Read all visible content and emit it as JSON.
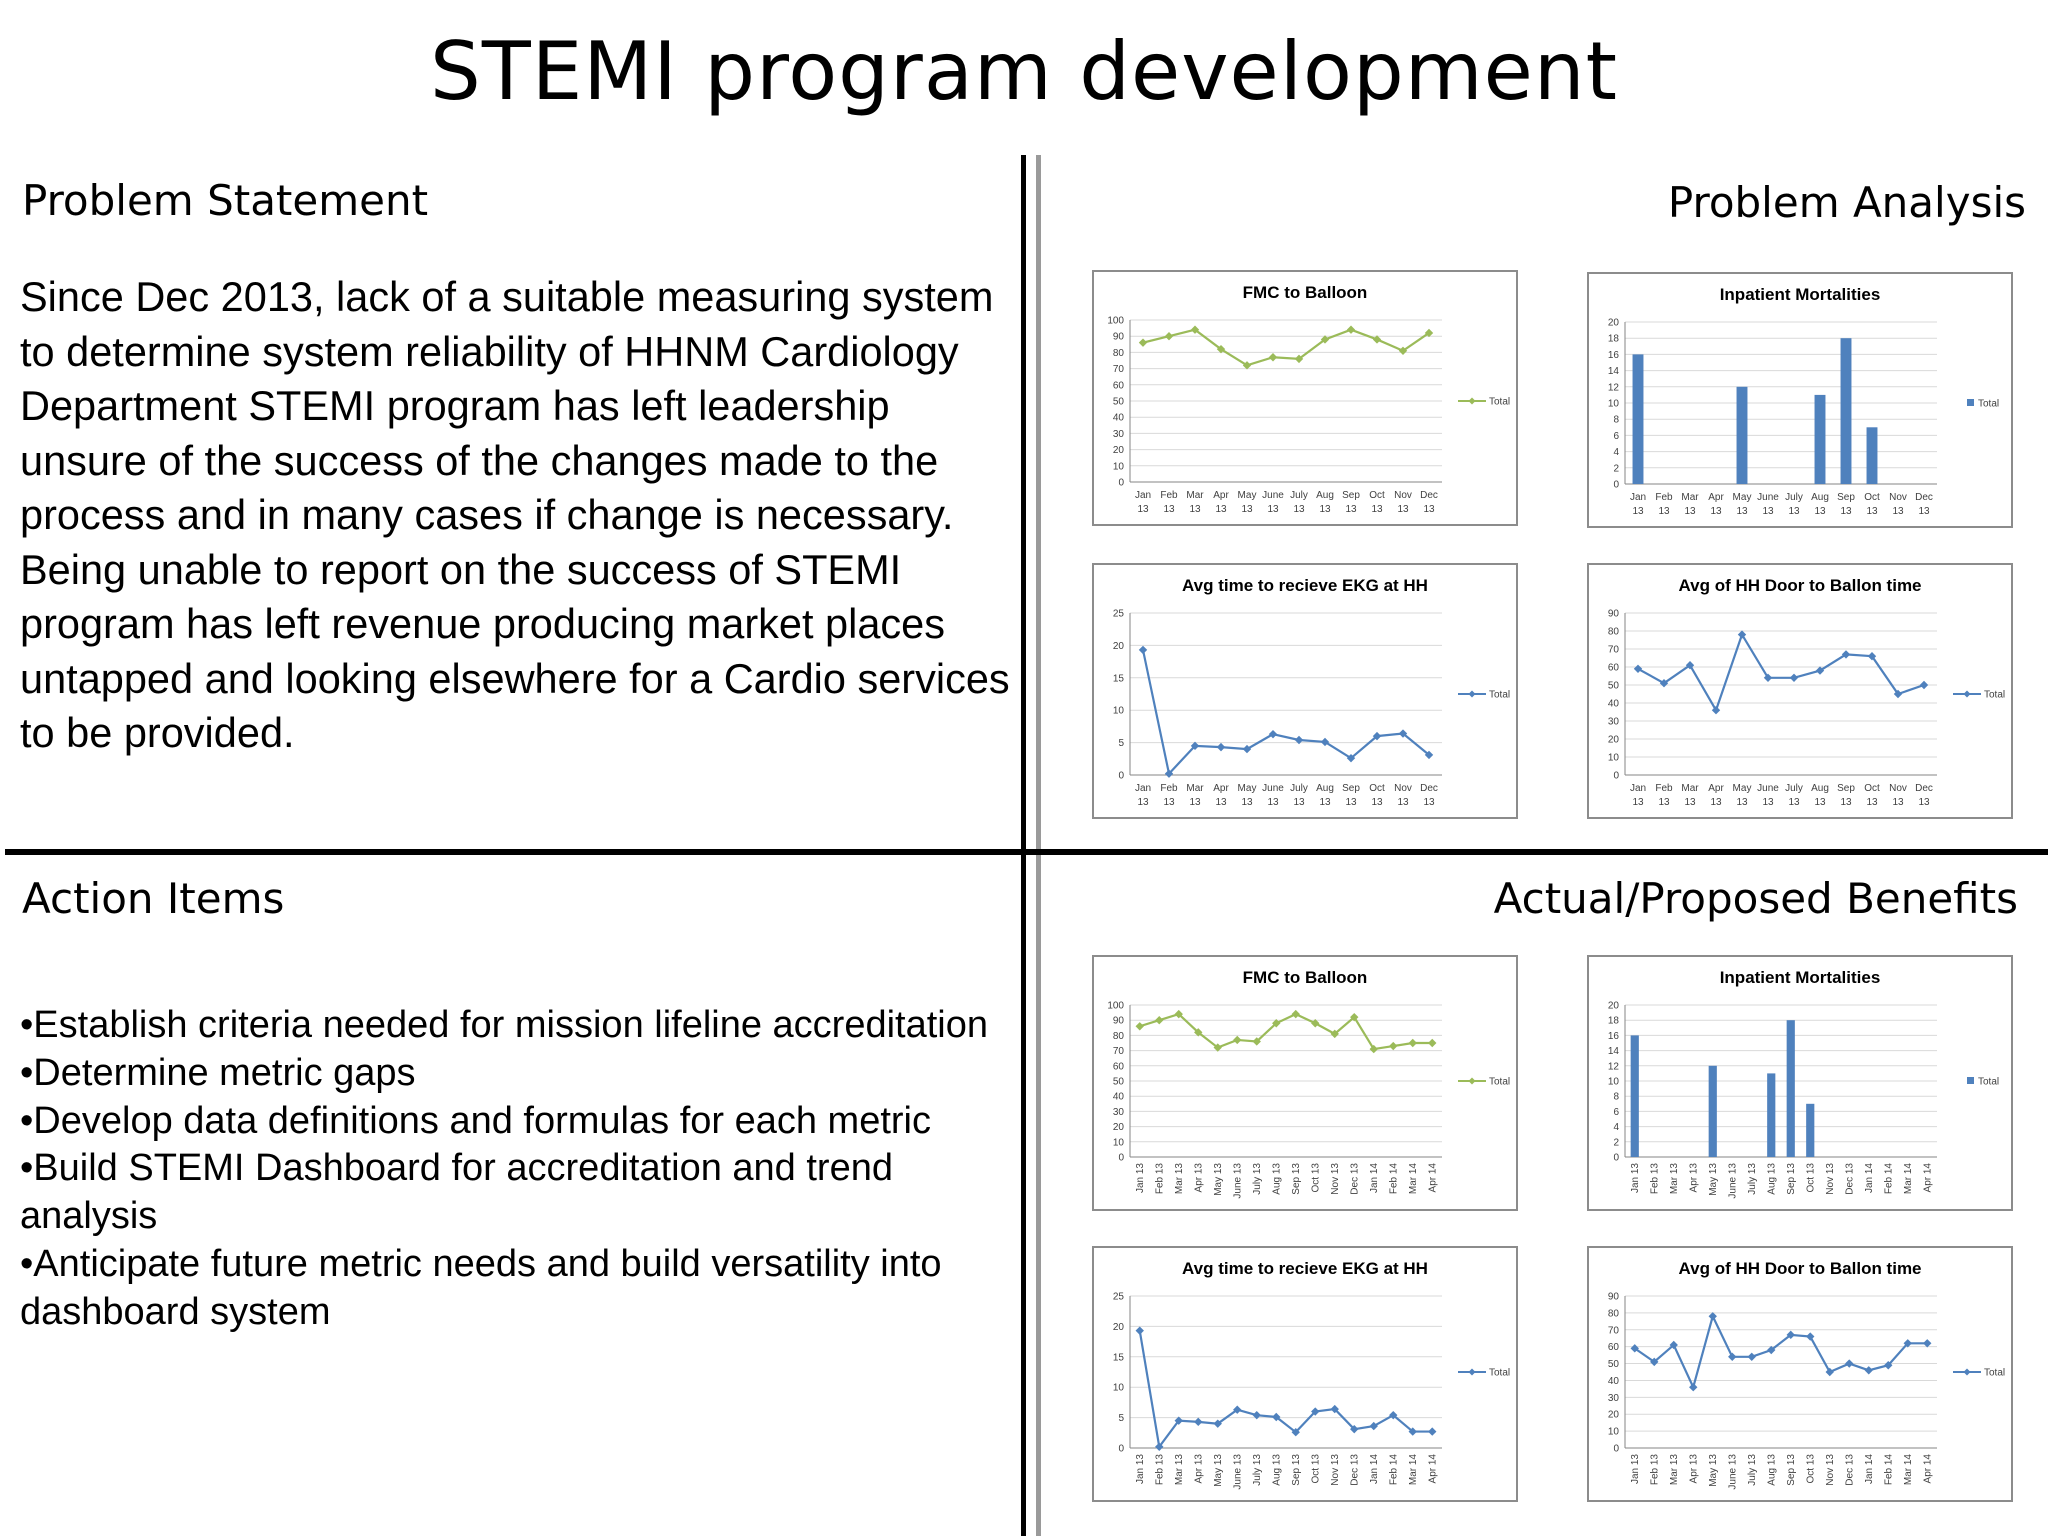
{
  "page_title": "STEMI program development",
  "problem_statement": {
    "heading": "Problem Statement",
    "body": "Since Dec 2013, lack of a suitable measuring system to determine system reliability of HHNM Cardiology Department STEMI program has left leadership unsure of the success of the changes made to the process and in many cases if change is necessary. Being unable to report on the success of STEMI program has left revenue producing market places untapped and looking elsewhere for a Cardio services to be provided."
  },
  "problem_analysis": {
    "heading": "Problem Analysis"
  },
  "action_items": {
    "heading": "Action Items",
    "items": [
      "•Establish criteria needed for mission lifeline accreditation",
      "•Determine metric gaps",
      "•Develop data definitions and formulas for each metric",
      "•Build STEMI Dashboard for accreditation and trend analysis",
      "•Anticipate future metric needs and build versatility into dashboard system"
    ]
  },
  "benefits": {
    "heading": "Actual/Proposed Benefits"
  },
  "colors": {
    "green": "#9bbb59",
    "blue": "#4f81bd",
    "grid": "#d9d9d9",
    "axis": "#868686",
    "text": "#404040"
  },
  "chart_data": [
    {
      "id": "pa-fmc",
      "type": "line",
      "title": "FMC to Balloon",
      "legend": "Total",
      "color": "#9bbb59",
      "marker": "diamond",
      "categories": [
        "Jan 13",
        "Feb 13",
        "Mar 13",
        "Apr 13",
        "May 13",
        "June 13",
        "July 13",
        "Aug 13",
        "Sep 13",
        "Oct 13",
        "Nov 13",
        "Dec 13"
      ],
      "tick_style": "stacked",
      "yticks": [
        0,
        10,
        20,
        30,
        40,
        50,
        60,
        70,
        80,
        90,
        100
      ],
      "ylim": [
        0,
        100
      ],
      "values": [
        86,
        90,
        94,
        82,
        72,
        77,
        76,
        88,
        94,
        88,
        81,
        92
      ]
    },
    {
      "id": "pa-mort",
      "type": "bar",
      "title": "Inpatient Mortalities",
      "legend": "Total",
      "color": "#4f81bd",
      "categories": [
        "Jan 13",
        "Feb 13",
        "Mar 13",
        "Apr 13",
        "May 13",
        "June 13",
        "July 13",
        "Aug 13",
        "Sep 13",
        "Oct 13",
        "Nov 13",
        "Dec 13"
      ],
      "tick_style": "stacked",
      "yticks": [
        0,
        2,
        4,
        6,
        8,
        10,
        12,
        14,
        16,
        18,
        20
      ],
      "ylim": [
        0,
        20
      ],
      "values": [
        16,
        0,
        0,
        0,
        12,
        0,
        0,
        11,
        18,
        7,
        0,
        0
      ]
    },
    {
      "id": "pa-ekg",
      "type": "line",
      "title": "Avg time to recieve EKG at HH",
      "legend": "Total",
      "color": "#4f81bd",
      "marker": "diamond",
      "categories": [
        "Jan 13",
        "Feb 13",
        "Mar 13",
        "Apr 13",
        "May 13",
        "June 13",
        "July 13",
        "Aug 13",
        "Sep 13",
        "Oct 13",
        "Nov 13",
        "Dec 13"
      ],
      "tick_style": "stacked",
      "yticks": [
        0,
        5,
        10,
        15,
        20,
        25
      ],
      "ylim": [
        0,
        25
      ],
      "values": [
        19.3,
        0.2,
        4.5,
        4.3,
        4.0,
        6.3,
        5.4,
        5.1,
        2.6,
        6.0,
        6.4,
        3.1
      ]
    },
    {
      "id": "pa-door",
      "type": "line",
      "title": "Avg of HH Door to Ballon time",
      "legend": "Total",
      "color": "#4f81bd",
      "marker": "diamond",
      "categories": [
        "Jan 13",
        "Feb 13",
        "Mar 13",
        "Apr 13",
        "May 13",
        "June 13",
        "July 13",
        "Aug 13",
        "Sep 13",
        "Oct 13",
        "Nov 13",
        "Dec 13"
      ],
      "tick_style": "stacked",
      "yticks": [
        0,
        10,
        20,
        30,
        40,
        50,
        60,
        70,
        80,
        90
      ],
      "ylim": [
        0,
        90
      ],
      "values": [
        59,
        51,
        61,
        36,
        78,
        54,
        54,
        58,
        67,
        66,
        45,
        50
      ]
    },
    {
      "id": "ab-fmc",
      "type": "line",
      "title": "FMC to Balloon",
      "legend": "Total",
      "color": "#9bbb59",
      "marker": "diamond",
      "categories": [
        "Jan 13",
        "Feb 13",
        "Mar 13",
        "Apr 13",
        "May 13",
        "June 13",
        "July 13",
        "Aug 13",
        "Sep 13",
        "Oct 13",
        "Nov 13",
        "Dec 13",
        "Jan 14",
        "Feb 14",
        "Mar 14",
        "Apr 14"
      ],
      "tick_style": "rotated",
      "yticks": [
        0,
        10,
        20,
        30,
        40,
        50,
        60,
        70,
        80,
        90,
        100
      ],
      "ylim": [
        0,
        100
      ],
      "values": [
        86,
        90,
        94,
        82,
        72,
        77,
        76,
        88,
        94,
        88,
        81,
        92,
        71,
        73,
        75,
        75
      ]
    },
    {
      "id": "ab-mort",
      "type": "bar",
      "title": "Inpatient Mortalities",
      "legend": "Total",
      "color": "#4f81bd",
      "categories": [
        "Jan 13",
        "Feb 13",
        "Mar 13",
        "Apr 13",
        "May 13",
        "June 13",
        "July 13",
        "Aug 13",
        "Sep 13",
        "Oct 13",
        "Nov 13",
        "Dec 13",
        "Jan 14",
        "Feb 14",
        "Mar 14",
        "Apr 14"
      ],
      "tick_style": "rotated",
      "yticks": [
        0,
        2,
        4,
        6,
        8,
        10,
        12,
        14,
        16,
        18,
        20
      ],
      "ylim": [
        0,
        20
      ],
      "values": [
        16,
        0,
        0,
        0,
        12,
        0,
        0,
        11,
        18,
        7,
        0,
        0,
        0,
        0,
        0,
        0
      ]
    },
    {
      "id": "ab-ekg",
      "type": "line",
      "title": "Avg time to recieve EKG at HH",
      "legend": "Total",
      "color": "#4f81bd",
      "marker": "diamond",
      "categories": [
        "Jan 13",
        "Feb 13",
        "Mar 13",
        "Apr 13",
        "May 13",
        "June 13",
        "July 13",
        "Aug 13",
        "Sep 13",
        "Oct 13",
        "Nov 13",
        "Dec 13",
        "Jan 14",
        "Feb 14",
        "Mar 14",
        "Apr 14"
      ],
      "tick_style": "rotated",
      "yticks": [
        0,
        5,
        10,
        15,
        20,
        25
      ],
      "ylim": [
        0,
        25
      ],
      "values": [
        19.3,
        0.2,
        4.5,
        4.3,
        4.0,
        6.3,
        5.4,
        5.1,
        2.6,
        6.0,
        6.4,
        3.1,
        3.6,
        5.4,
        2.7,
        2.7
      ]
    },
    {
      "id": "ab-door",
      "type": "line",
      "title": "Avg of HH Door to Ballon time",
      "legend": "Total",
      "color": "#4f81bd",
      "marker": "diamond",
      "categories": [
        "Jan 13",
        "Feb 13",
        "Mar 13",
        "Apr 13",
        "May 13",
        "June 13",
        "July 13",
        "Aug 13",
        "Sep 13",
        "Oct 13",
        "Nov 13",
        "Dec 13",
        "Jan 14",
        "Feb 14",
        "Mar 14",
        "Apr 14"
      ],
      "tick_style": "rotated",
      "yticks": [
        0,
        10,
        20,
        30,
        40,
        50,
        60,
        70,
        80,
        90
      ],
      "ylim": [
        0,
        90
      ],
      "values": [
        59,
        51,
        61,
        36,
        78,
        54,
        54,
        58,
        67,
        66,
        45,
        50,
        46,
        49,
        62,
        62
      ]
    }
  ]
}
